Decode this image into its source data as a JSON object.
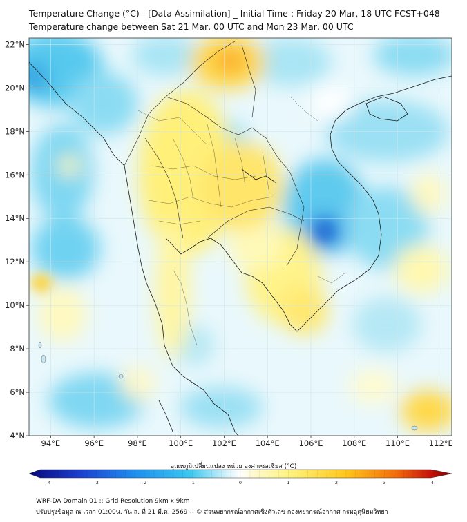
{
  "header": {
    "title_line1": "Temperature Change (°C) - [Data Assimilation] _ Initial Time : Friday 20 Mar, 18 UTC FCST+048",
    "title_line2": "Temperature change between Sat 21 Mar, 00 UTC and Mon 23 Mar, 00 UTC"
  },
  "map": {
    "lat_labels": [
      "22°N",
      "20°N",
      "18°N",
      "16°N",
      "14°N",
      "12°N",
      "10°N",
      "8°N",
      "6°N",
      "4°N"
    ],
    "lon_labels": [
      "94°E",
      "96°E",
      "98°E",
      "100°E",
      "102°E",
      "104°E",
      "106°E",
      "108°E",
      "110°E",
      "112°E"
    ],
    "lat_range": [
      4,
      22.3
    ],
    "lon_range": [
      93,
      112.5
    ],
    "background_color": "#ffffff",
    "highlights": [
      {
        "name": "warm-north-laos",
        "lon": 101.9,
        "lat": 21.0,
        "value": 2.2
      },
      {
        "name": "cold-cambodia-east",
        "lon": 106.6,
        "lat": 13.4,
        "value": -2.3
      },
      {
        "name": "cold-myanmar-northwest",
        "lon": 93.4,
        "lat": 20.3,
        "value": -1.6
      },
      {
        "name": "warm-south-china-sea",
        "lon": 110.8,
        "lat": 5.0,
        "value": 1.8
      }
    ]
  },
  "colorbar": {
    "title": "อุณหภูมิเปลี่ยนแปลง หน่วย องศาเซลเซียส (°C)",
    "ticks": [
      "-4",
      "-3",
      "-2",
      "-1",
      "0",
      "1",
      "2",
      "3",
      "4"
    ],
    "min": -4,
    "max": 4,
    "colors": [
      "#08087a",
      "#1a3fd0",
      "#1e8ff0",
      "#39c7f0",
      "#ffffff",
      "#fff27a",
      "#ffc61a",
      "#f36a0a",
      "#c5120a",
      "#7a0000"
    ]
  },
  "footer": {
    "line1": "WRF-DA Domain 01 :: Grid Resolution 9km x 9km",
    "line2": "ปรับปรุงข้อมูล ณ เวลา 01:00น. วัน ส. ที่ 21 มี.ค. 2569 -- © ส่วนพยากรณ์อากาศเชิงตัวเลข กองพยากรณ์อากาศ กรมอุตุนิยมวิทยา"
  }
}
